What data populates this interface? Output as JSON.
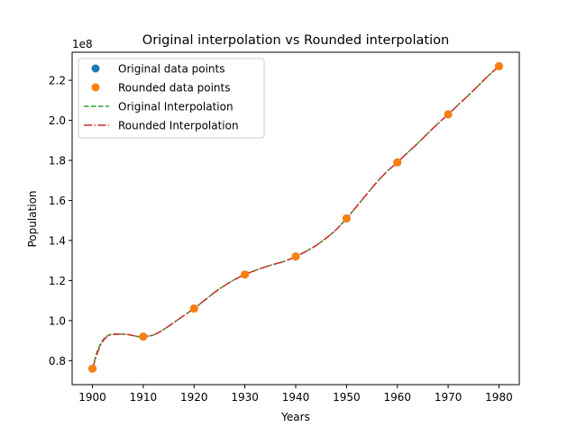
{
  "chart_data": {
    "type": "line",
    "title": "Original interpolation vs Rounded interpolation",
    "xlabel": "Years",
    "ylabel": "Population",
    "offset_text": "1e8",
    "xlim": [
      1896,
      1984
    ],
    "ylim": [
      0.68,
      2.34
    ],
    "x_ticks": [
      1900,
      1910,
      1920,
      1930,
      1940,
      1950,
      1960,
      1970,
      1980
    ],
    "x_tick_labels": [
      "1900",
      "1910",
      "1920",
      "1930",
      "1940",
      "1950",
      "1960",
      "1970",
      "1980"
    ],
    "y_ticks": [
      0.8,
      1.0,
      1.2,
      1.4,
      1.6,
      1.8,
      2.0,
      2.2
    ],
    "y_tick_labels": [
      "0.8",
      "1.0",
      "1.2",
      "1.4",
      "1.6",
      "1.8",
      "2.0",
      "2.2"
    ],
    "grid": false,
    "legend_position": "top-left",
    "legend": [
      {
        "label": "Original data points",
        "style": "marker",
        "color": "#1f77b4"
      },
      {
        "label": "Rounded data points",
        "style": "marker",
        "color": "#ff7f0e"
      },
      {
        "label": "Original Interpolation",
        "style": "dashed",
        "color": "#2ca02c"
      },
      {
        "label": "Rounded Interpolation",
        "style": "dashdot",
        "color": "#d62728"
      }
    ],
    "original_points": {
      "color": "#1f77b4",
      "x": [
        1900,
        1910,
        1920,
        1930,
        1940,
        1950,
        1960,
        1970,
        1980
      ],
      "y": [
        0.76,
        0.92,
        1.06,
        1.23,
        1.32,
        1.51,
        1.79,
        2.03,
        2.27
      ]
    },
    "rounded_points": {
      "color": "#ff7f0e",
      "x": [
        1900,
        1910,
        1920,
        1930,
        1940,
        1950,
        1960,
        1970,
        1980
      ],
      "y": [
        0.76,
        0.92,
        1.06,
        1.23,
        1.32,
        1.51,
        1.79,
        2.03,
        2.27
      ]
    },
    "original_curve": {
      "color": "#2ca02c",
      "x": [
        1900,
        1901,
        1902,
        1903,
        1904,
        1905,
        1906,
        1907,
        1908,
        1909,
        1910,
        1912,
        1914,
        1916,
        1918,
        1920,
        1922,
        1924,
        1926,
        1928,
        1930,
        1932,
        1934,
        1936,
        1938,
        1940,
        1942,
        1944,
        1946,
        1948,
        1950,
        1952,
        1954,
        1956,
        1958,
        1960,
        1962,
        1964,
        1966,
        1968,
        1970,
        1972,
        1974,
        1976,
        1978,
        1980
      ],
      "y": [
        0.76,
        0.85,
        0.9,
        0.925,
        0.932,
        0.933,
        0.932,
        0.93,
        0.925,
        0.92,
        0.92,
        0.928,
        0.955,
        0.99,
        1.025,
        1.06,
        1.1,
        1.14,
        1.175,
        1.205,
        1.23,
        1.25,
        1.268,
        1.283,
        1.298,
        1.32,
        1.345,
        1.375,
        1.412,
        1.455,
        1.51,
        1.57,
        1.632,
        1.692,
        1.745,
        1.79,
        1.838,
        1.885,
        1.935,
        1.984,
        2.03,
        2.078,
        2.125,
        2.175,
        2.225,
        2.27
      ]
    },
    "rounded_curve": {
      "color": "#d62728",
      "x": [
        1900,
        1901,
        1902,
        1903,
        1904,
        1905,
        1906,
        1907,
        1908,
        1909,
        1910,
        1912,
        1914,
        1916,
        1918,
        1920,
        1922,
        1924,
        1926,
        1928,
        1930,
        1932,
        1934,
        1936,
        1938,
        1940,
        1942,
        1944,
        1946,
        1948,
        1950,
        1952,
        1954,
        1956,
        1958,
        1960,
        1962,
        1964,
        1966,
        1968,
        1970,
        1972,
        1974,
        1976,
        1978,
        1980
      ],
      "y": [
        0.76,
        0.84,
        0.895,
        0.922,
        0.93,
        0.932,
        0.932,
        0.93,
        0.925,
        0.92,
        0.92,
        0.928,
        0.955,
        0.99,
        1.025,
        1.06,
        1.1,
        1.14,
        1.175,
        1.205,
        1.23,
        1.25,
        1.268,
        1.283,
        1.298,
        1.32,
        1.345,
        1.375,
        1.412,
        1.455,
        1.51,
        1.57,
        1.632,
        1.692,
        1.745,
        1.79,
        1.838,
        1.885,
        1.935,
        1.984,
        2.03,
        2.078,
        2.125,
        2.175,
        2.225,
        2.27
      ]
    }
  }
}
